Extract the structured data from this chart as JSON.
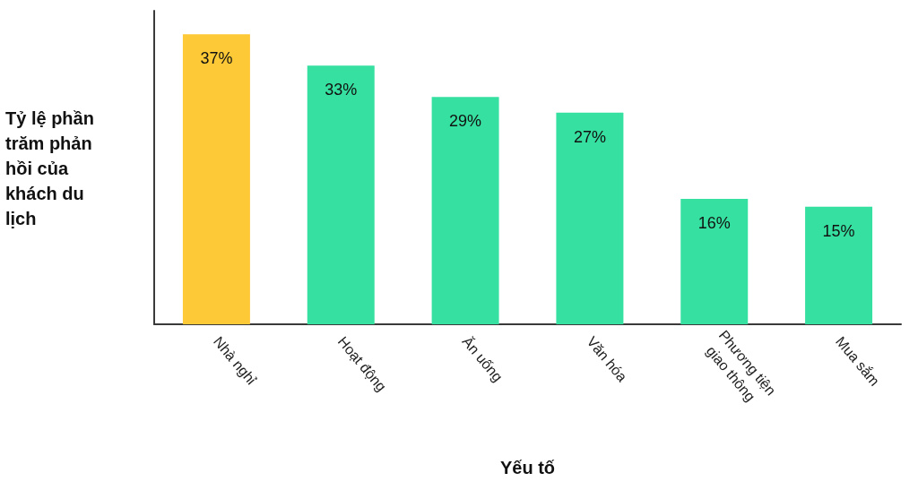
{
  "chart_data": {
    "type": "bar",
    "xlabel": "Yếu tố",
    "ylabel": "Tỷ lệ phần trăm phản hồi của khách du lịch",
    "categories": [
      "Nhà nghỉ",
      "Hoạt động",
      "Ăn uống",
      "Văn hóa",
      "Phương tiện giao thông",
      "Mua sắm"
    ],
    "values": [
      37,
      33,
      29,
      27,
      16,
      15
    ],
    "colors": [
      "#fec936",
      "#36e0a1",
      "#36e0a1",
      "#36e0a1",
      "#36e0a1",
      "#36e0a1"
    ],
    "value_labels": [
      "37%",
      "33%",
      "29%",
      "27%",
      "16%",
      "15%"
    ],
    "grid": false
  }
}
